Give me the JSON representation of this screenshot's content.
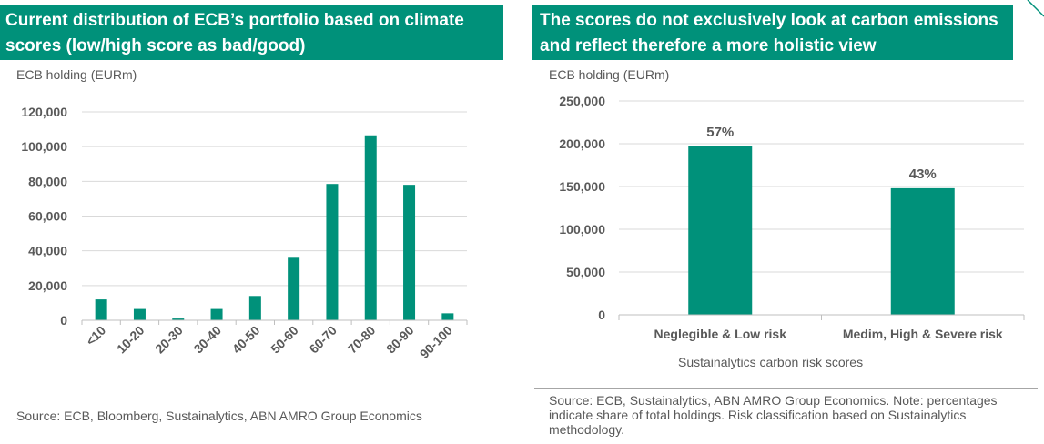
{
  "left": {
    "title": "Current distribution of ECB’s portfolio based on climate scores (low/high score as bad/good)",
    "unit_label": "ECB holding (EURm)",
    "source": "Source: ECB, Bloomberg, Sustainalytics, ABN AMRO Group Economics",
    "chart_data": {
      "type": "bar",
      "title": "Current distribution of ECB’s portfolio based on climate scores (low/high score as bad/good)",
      "ylabel": "ECB holding (EURm)",
      "xlabel": "",
      "categories": [
        "<10",
        "10-20",
        "20-30",
        "30-40",
        "40-50",
        "50-60",
        "60-70",
        "70-80",
        "80-90",
        "90-100"
      ],
      "values": [
        12000,
        6500,
        1000,
        6500,
        14000,
        36000,
        78500,
        106500,
        78000,
        4000
      ],
      "ylim": [
        0,
        120000
      ],
      "yticks": [
        0,
        20000,
        40000,
        60000,
        80000,
        100000,
        120000
      ],
      "ytick_labels": [
        "0",
        "20,000",
        "40,000",
        "60,000",
        "80,000",
        "100,000",
        "120,000"
      ],
      "grid": true,
      "bar_color": "#00917a"
    }
  },
  "right": {
    "title": "The scores do not exclusively look at carbon emissions and reflect therefore a more holistic view",
    "unit_label": "ECB holding (EURm)",
    "xaxis_title": "Sustainalytics carbon risk scores",
    "source": "Source: ECB, Sustainalytics, ABN AMRO Group Economics. Note: percentages indicate share of total holdings. Risk classification based on Sustainalytics methodology.",
    "chart_data": {
      "type": "bar",
      "title": "The scores do not exclusively look at carbon emissions and reflect therefore a more holistic view",
      "ylabel": "ECB holding (EURm)",
      "xlabel": "Sustainalytics carbon risk scores",
      "categories": [
        "Neglegible & Low risk",
        "Medim, High & Severe risk"
      ],
      "values": [
        197000,
        148000
      ],
      "data_labels": [
        "57%",
        "43%"
      ],
      "ylim": [
        0,
        250000
      ],
      "yticks": [
        0,
        50000,
        100000,
        150000,
        200000,
        250000
      ],
      "ytick_labels": [
        "0",
        "50,000",
        "100,000",
        "150,000",
        "200,000",
        "250,000"
      ],
      "grid": true,
      "bar_color": "#00917a"
    }
  }
}
